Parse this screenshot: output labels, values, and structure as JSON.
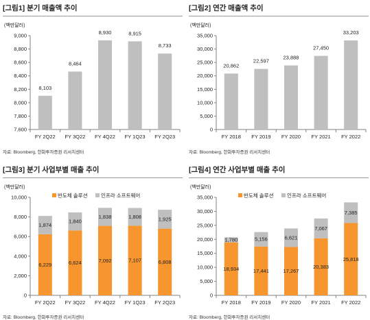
{
  "colors": {
    "bar_gray": "#bfbfbf",
    "bar_orange": "#f7962e",
    "axis": "#7f7f7f",
    "text": "#222222"
  },
  "panels": [
    {
      "title": "[그림1] 분기 매출액 추이",
      "source": "자료: Bloomberg, 한화투자증권 리서치센터",
      "chart_data": {
        "type": "bar",
        "unit_label": "(백만달러)",
        "categories": [
          "FY 2Q22",
          "FY 3Q22",
          "FY 4Q22",
          "FY 1Q23",
          "FY 2Q23"
        ],
        "values": [
          8103,
          8464,
          8930,
          8915,
          8733
        ],
        "value_labels": [
          "8,103",
          "8,464",
          "8,930",
          "8,915",
          "8,733"
        ],
        "ylim": [
          7600,
          9000
        ],
        "yticks": [
          "7,600",
          "7,800",
          "8,000",
          "8,200",
          "8,400",
          "8,600",
          "8,800",
          "9,000"
        ]
      }
    },
    {
      "title": "[그림2] 연간 매출액 추이",
      "source": "자료: Bloomberg, 한화투자증권 리서치센터",
      "chart_data": {
        "type": "bar",
        "unit_label": "(백만달러)",
        "categories": [
          "FY 2018",
          "FY 2019",
          "FY 2020",
          "FY 2021",
          "FY 2022"
        ],
        "values": [
          20862,
          22597,
          23888,
          27450,
          33203
        ],
        "value_labels": [
          "20,862",
          "22,597",
          "23,888",
          "27,450",
          "33,203"
        ],
        "ylim": [
          0,
          35000
        ],
        "yticks": [
          "0",
          "5,000",
          "10,000",
          "15,000",
          "20,000",
          "25,000",
          "30,000",
          "35,000"
        ]
      }
    },
    {
      "title": "[그림3] 분기 사업부별 매출 추이",
      "source": "자료: Bloomberg, 한화투자증권 리서치센터",
      "chart_data": {
        "type": "bar",
        "stacked": true,
        "unit_label": "(백만달러)",
        "categories": [
          "FY 2Q22",
          "FY 3Q22",
          "FY 4Q22",
          "FY 1Q23",
          "FY 2Q23"
        ],
        "series": [
          {
            "name": "반도체 솔루션",
            "values": [
              6229,
              6624,
              7092,
              7107,
              6808
            ],
            "labels": [
              "6,229",
              "6,624",
              "7,092",
              "7,107",
              "6,808"
            ]
          },
          {
            "name": "인프라 소프트웨어",
            "values": [
              1874,
              1840,
              1838,
              1808,
              1925
            ],
            "labels": [
              "1,874",
              "1,840",
              "1,838",
              "1,808",
              "1,925"
            ]
          }
        ],
        "ylim": [
          0,
          10000
        ],
        "yticks": [
          "0",
          "2,000",
          "4,000",
          "6,000",
          "8,000",
          "10,000"
        ]
      }
    },
    {
      "title": "[그림4] 연간 사업부별 매출 추이",
      "source": "자료: Bloomberg, 한화투자증권 리서치센터",
      "chart_data": {
        "type": "bar",
        "stacked": true,
        "unit_label": "(백만달러)",
        "categories": [
          "FY 2018",
          "FY 2019",
          "FY 2020",
          "FY 2021",
          "FY 2022"
        ],
        "series": [
          {
            "name": "반도체 솔루션",
            "values": [
              18934,
              17441,
              17267,
              20383,
              25818
            ],
            "labels": [
              "18,934",
              "17,441",
              "17,267",
              "20,383",
              "25,818"
            ]
          },
          {
            "name": "인프라 소프트웨어",
            "values": [
              1780,
              5156,
              6621,
              7067,
              7385
            ],
            "labels": [
              "1,780",
              "5,156",
              "6,621",
              "7,067",
              "7,385"
            ]
          }
        ],
        "ylim": [
          0,
          35000
        ],
        "yticks": [
          "0",
          "5,000",
          "10,000",
          "15,000",
          "20,000",
          "25,000",
          "30,000",
          "35,000"
        ]
      }
    }
  ]
}
